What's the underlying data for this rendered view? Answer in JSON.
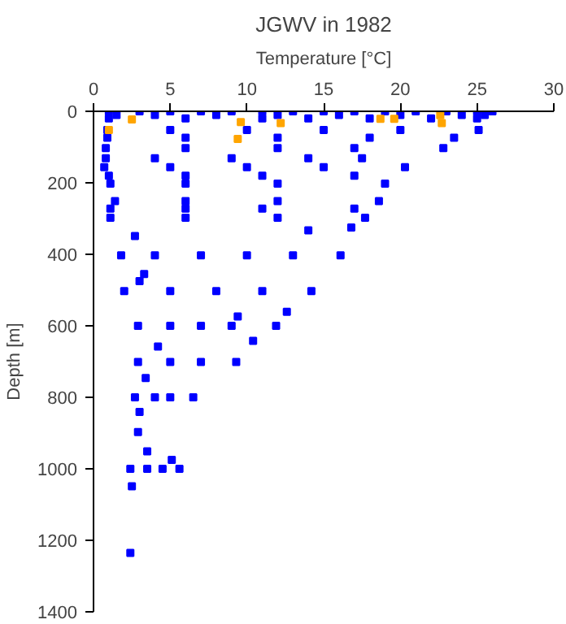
{
  "chart_data": {
    "type": "scatter",
    "title": "JGWV in 1982",
    "xlabel": "Temperature [°C]",
    "ylabel": "Depth [m]",
    "xlim": [
      0,
      30
    ],
    "xticks": [
      0,
      5,
      10,
      15,
      20,
      25,
      30
    ],
    "ylim": [
      1400,
      0
    ],
    "yticks": [
      0,
      200,
      400,
      600,
      800,
      1000,
      1200,
      1400
    ],
    "grid": false,
    "marker": "square",
    "series": [
      {
        "color": "#0000ff",
        "x": [
          1,
          3,
          5,
          7,
          9,
          11,
          13,
          15,
          17,
          19,
          21,
          23,
          25,
          26,
          1.5,
          4,
          8,
          12,
          16,
          20,
          24,
          25.5,
          1,
          6,
          11,
          14,
          18,
          22,
          25,
          0.9,
          5,
          10,
          15,
          20,
          25.1,
          0.9,
          6,
          12,
          18,
          23.5,
          0.8,
          6,
          12,
          17,
          22.8,
          0.8,
          4,
          9,
          14,
          17.5,
          0.7,
          5,
          10,
          15,
          20.3,
          1.0,
          6,
          11,
          17,
          1.1,
          6,
          12,
          19,
          1.4,
          6,
          12,
          18.6,
          1.1,
          6,
          11,
          17,
          1.1,
          6,
          12,
          17.7,
          14.0,
          16.8,
          2.7,
          1.8,
          4,
          7,
          10,
          13,
          16.1,
          3.0,
          3.3,
          2.0,
          5,
          8,
          11,
          14.2,
          9.4,
          12.6,
          2.9,
          5,
          7,
          9,
          11.9,
          10.4,
          4.2,
          2.9,
          5,
          7,
          9.3,
          3.4,
          2.7,
          4,
          5,
          6.5,
          3.0,
          2.9,
          3.5,
          5.1,
          2.4,
          3.5,
          4.5,
          5.6,
          2.5,
          2.4
        ],
        "values": [
          0,
          0,
          0,
          0,
          0,
          0,
          0,
          0,
          0,
          0,
          0,
          0,
          0,
          0,
          10,
          10,
          10,
          10,
          10,
          10,
          10,
          10,
          20,
          20,
          20,
          20,
          20,
          20,
          20,
          52,
          52,
          52,
          52,
          52,
          52,
          74,
          74,
          74,
          74,
          74,
          103,
          103,
          103,
          103,
          103,
          131,
          131,
          131,
          131,
          131,
          156,
          156,
          156,
          156,
          156,
          180,
          180,
          180,
          180,
          202,
          202,
          202,
          202,
          251,
          251,
          251,
          251,
          272,
          272,
          272,
          272,
          298,
          298,
          298,
          298,
          333,
          325,
          349,
          403,
          403,
          403,
          403,
          403,
          403,
          475,
          455,
          503,
          503,
          503,
          503,
          503,
          574,
          561,
          600,
          600,
          600,
          600,
          600,
          642,
          658,
          701,
          701,
          701,
          701,
          746,
          800,
          800,
          800,
          800,
          841,
          897,
          951,
          975,
          1000,
          1000,
          1000,
          1000,
          1049,
          1235
        ]
      },
      {
        "color": "#ffa500",
        "x": [
          2.5,
          9.6,
          12.2,
          18.7,
          19.6,
          22.6,
          22.7,
          1.0,
          9.4
        ],
        "values": [
          23,
          30,
          33,
          21,
          21,
          11,
          33,
          52,
          77
        ]
      }
    ]
  }
}
